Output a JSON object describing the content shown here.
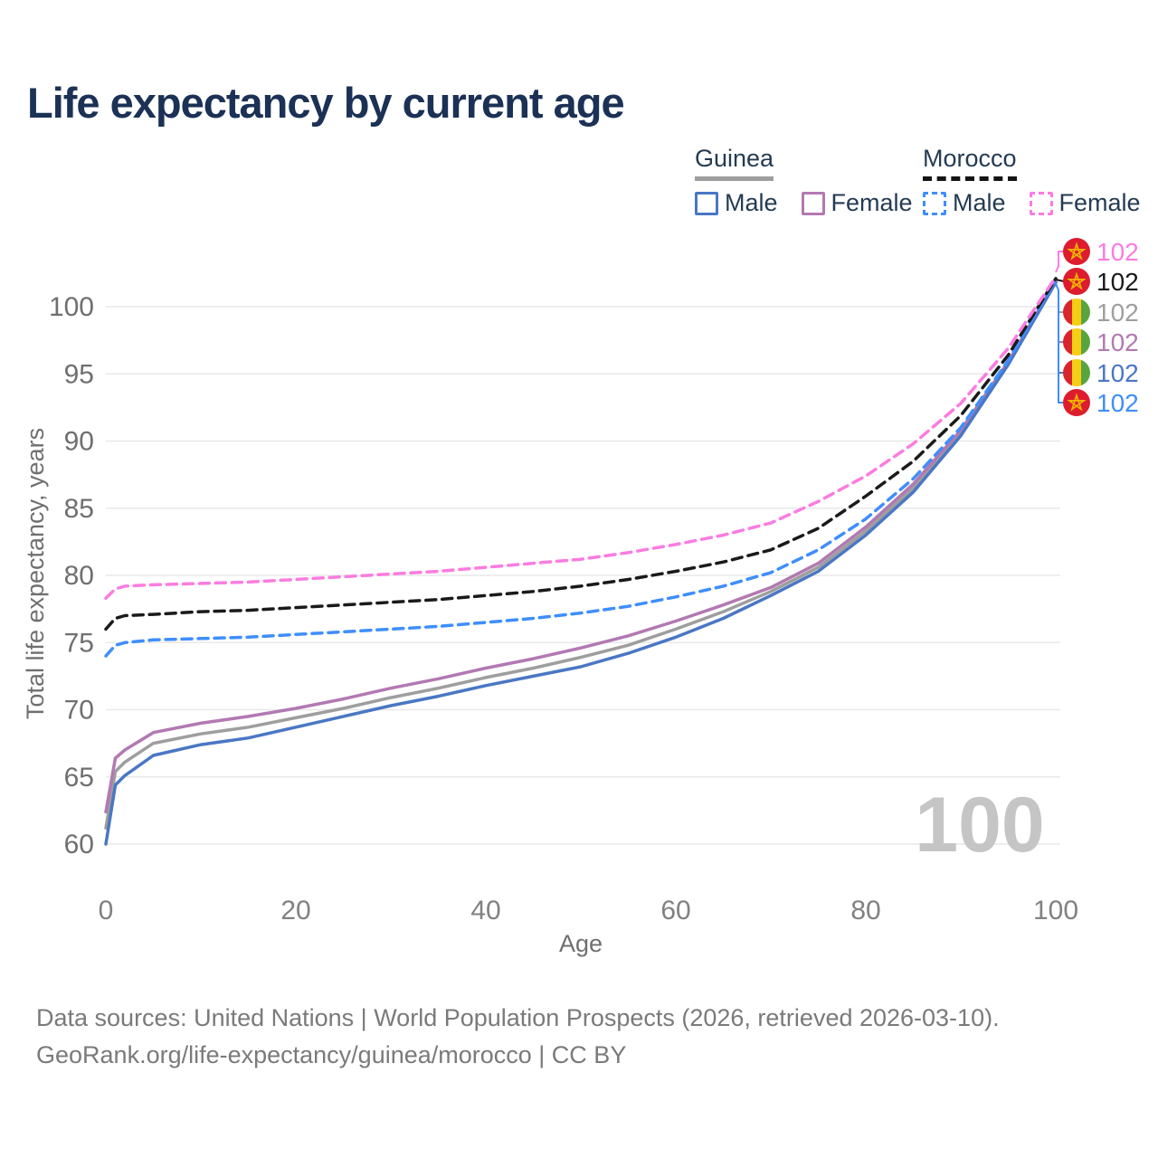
{
  "title": "Life expectancy by current age",
  "watermark": "100",
  "legend": {
    "groups": [
      {
        "name": "Guinea",
        "style": "solid",
        "items": [
          {
            "label": "Male",
            "color": "#4a77c4",
            "dashed": false
          },
          {
            "label": "Female",
            "color": "#b279b2",
            "dashed": false
          }
        ]
      },
      {
        "name": "Morocco",
        "style": "dashed",
        "items": [
          {
            "label": "Male",
            "color": "#3f8efc",
            "dashed": true
          },
          {
            "label": "Female",
            "color": "#fb7ce0",
            "dashed": true
          }
        ]
      }
    ]
  },
  "footer": {
    "line1": "Data sources: United Nations | World Population Prospects (2026, retrieved 2026-03-10).",
    "line2": "GeoRank.org/life-expectancy/guinea/morocco | CC BY"
  },
  "chart_data": {
    "type": "line",
    "title": "Life expectancy by current age",
    "xlabel": "Age",
    "ylabel": "Total life expectancy, years",
    "xlim": [
      0,
      100
    ],
    "ylim": [
      60,
      102.5
    ],
    "xticks": [
      0,
      20,
      40,
      60,
      80,
      100
    ],
    "yticks": [
      60,
      65,
      70,
      75,
      80,
      85,
      90,
      95,
      100
    ],
    "grid": "horizontal",
    "legend_position": "top-right",
    "x": [
      0,
      1,
      2,
      5,
      10,
      15,
      20,
      25,
      30,
      35,
      40,
      45,
      50,
      55,
      60,
      65,
      70,
      75,
      80,
      85,
      90,
      95,
      100
    ],
    "series": [
      {
        "name": "Guinea Both sexes",
        "country": "Guinea",
        "sex": "both",
        "color": "#9e9e9e",
        "dashed": false,
        "values": [
          61.2,
          65.4,
          66.1,
          67.5,
          68.2,
          68.7,
          69.4,
          70.1,
          70.9,
          71.6,
          72.4,
          73.1,
          73.9,
          74.8,
          76.0,
          77.3,
          78.8,
          80.6,
          83.3,
          86.5,
          90.6,
          95.8,
          101.85
        ]
      },
      {
        "name": "Guinea Female",
        "country": "Guinea",
        "sex": "female",
        "color": "#b279b2",
        "dashed": false,
        "values": [
          62.4,
          66.4,
          67.0,
          68.3,
          69.0,
          69.5,
          70.1,
          70.8,
          71.6,
          72.3,
          73.1,
          73.8,
          74.6,
          75.5,
          76.6,
          77.8,
          79.1,
          80.9,
          83.6,
          86.8,
          90.8,
          95.9,
          101.9
        ]
      },
      {
        "name": "Guinea Male",
        "country": "Guinea",
        "sex": "male",
        "color": "#4a77c4",
        "dashed": false,
        "values": [
          60.0,
          64.4,
          65.1,
          66.6,
          67.4,
          67.9,
          68.7,
          69.5,
          70.3,
          71.0,
          71.8,
          72.5,
          73.2,
          74.2,
          75.4,
          76.8,
          78.5,
          80.3,
          83.0,
          86.2,
          90.4,
          95.7,
          101.8
        ]
      },
      {
        "name": "Morocco Male",
        "country": "Morocco",
        "sex": "male",
        "color": "#3f8efc",
        "dashed": true,
        "values": [
          74.0,
          74.8,
          75.0,
          75.2,
          75.3,
          75.4,
          75.6,
          75.8,
          76.0,
          76.2,
          76.5,
          76.8,
          77.2,
          77.7,
          78.4,
          79.2,
          80.2,
          81.9,
          84.2,
          87.2,
          91.0,
          96.0,
          102.0
        ]
      },
      {
        "name": "Morocco Both sexes",
        "country": "Morocco",
        "sex": "both",
        "color": "#1a1a1a",
        "dashed": true,
        "values": [
          76.0,
          76.8,
          77.0,
          77.1,
          77.3,
          77.4,
          77.6,
          77.8,
          78.0,
          78.2,
          78.5,
          78.8,
          79.2,
          79.7,
          80.3,
          81.0,
          81.9,
          83.5,
          85.9,
          88.5,
          91.9,
          96.4,
          102.1
        ]
      },
      {
        "name": "Morocco Female",
        "country": "Morocco",
        "sex": "female",
        "color": "#fb7ce0",
        "dashed": true,
        "values": [
          78.3,
          79.0,
          79.2,
          79.3,
          79.4,
          79.5,
          79.7,
          79.9,
          80.1,
          80.3,
          80.6,
          80.9,
          81.2,
          81.7,
          82.3,
          83.0,
          83.9,
          85.5,
          87.4,
          89.8,
          92.8,
          96.9,
          102.2
        ]
      }
    ],
    "end_labels": [
      {
        "value": "102",
        "series": "Morocco Female",
        "flag": "morocco",
        "color": "#fb7ce0"
      },
      {
        "value": "102",
        "series": "Morocco Both sexes",
        "flag": "morocco",
        "color": "#1a1a1a"
      },
      {
        "value": "102",
        "series": "Guinea Both sexes",
        "flag": "guinea",
        "color": "#9e9e9e"
      },
      {
        "value": "102",
        "series": "Guinea Female",
        "flag": "guinea",
        "color": "#b279b2"
      },
      {
        "value": "102",
        "series": "Guinea Male",
        "flag": "guinea",
        "color": "#4a77c4"
      },
      {
        "value": "102",
        "series": "Morocco Male",
        "flag": "morocco",
        "color": "#3f8efc"
      }
    ]
  }
}
